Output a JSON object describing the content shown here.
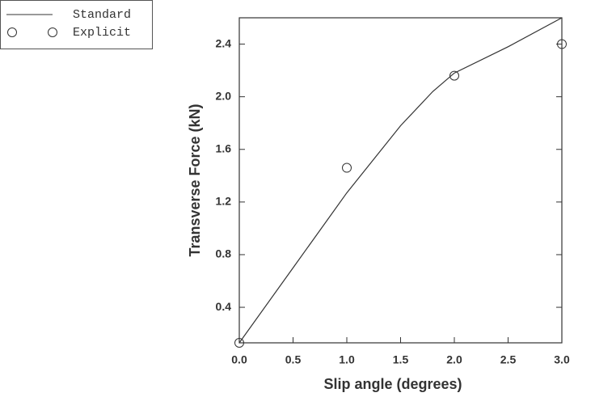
{
  "chart_data": {
    "type": "line",
    "x_label": "Slip angle (degrees)",
    "y_label": "Transverse Force (kN)",
    "series": [
      {
        "name": "Standard",
        "style": "line",
        "color": "#333333",
        "x": [
          0.0,
          0.5,
          1.0,
          1.5,
          1.8,
          2.0,
          2.5,
          3.0
        ],
        "values": [
          0.13,
          0.7,
          1.27,
          1.78,
          2.04,
          2.18,
          2.38,
          2.6
        ]
      },
      {
        "name": "Explicit",
        "style": "markers",
        "color": "#333333",
        "x": [
          0.0,
          1.0,
          2.0,
          3.0
        ],
        "values": [
          0.13,
          1.46,
          2.16,
          2.4
        ]
      }
    ],
    "xlim": [
      0,
      3
    ],
    "xticks": [
      {
        "value": 0,
        "label": "0.0"
      },
      0.5,
      {
        "value": 1,
        "label": "1.0"
      },
      1.5,
      {
        "value": 2,
        "label": "2.0"
      },
      2.5,
      {
        "value": 3,
        "label": "3.0"
      }
    ],
    "ylim": [
      0.13,
      2.6
    ],
    "yticks": [
      0.4,
      0.8,
      1.2,
      1.6,
      {
        "value": 2,
        "label": "2.0"
      },
      2.4
    ],
    "legend": "top-left"
  }
}
